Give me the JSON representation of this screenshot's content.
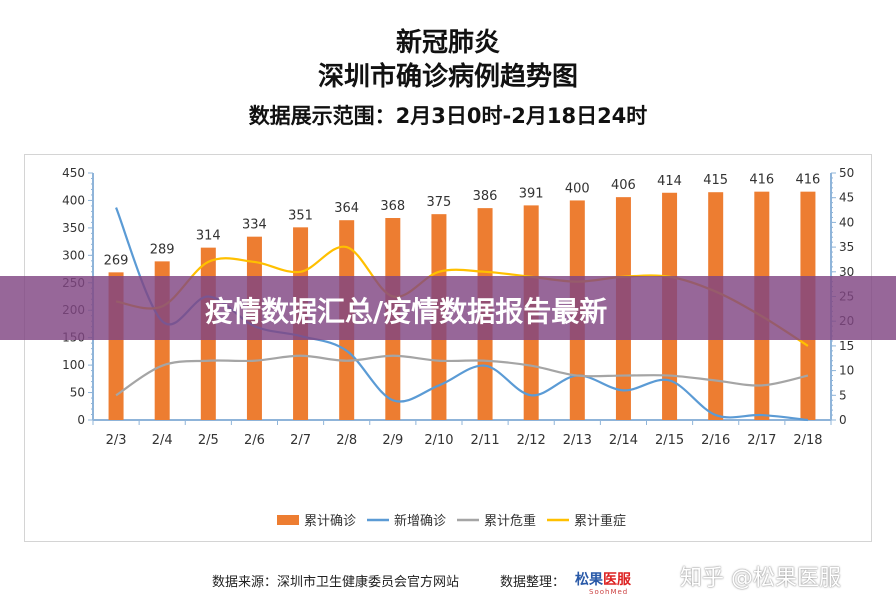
{
  "header": {
    "title_line1": "新冠肺炎",
    "title_line2": "深圳市确诊病例趋势图",
    "date_range": "数据展示范围：2月3日0时-2月18日24时"
  },
  "banner": {
    "text": "疫情数据汇总/疫情数据报告最新"
  },
  "footer": {
    "source": "数据来源：深圳市卫生健康委员会官方网站",
    "organizer": "数据整理：",
    "logo_text_a": "松果",
    "logo_text_b": "医服",
    "logo_sub": "SoohMed",
    "watermark": "知乎 @松果医服"
  },
  "colors": {
    "cumulative": "#ed7d31",
    "new": "#5b9bd5",
    "critical": "#a5a5a5",
    "severe": "#ffc000",
    "axis": "#8fb4d9"
  },
  "chart_data": {
    "type": "bar",
    "categories": [
      "2/3",
      "2/4",
      "2/5",
      "2/6",
      "2/7",
      "2/8",
      "2/9",
      "2/10",
      "2/11",
      "2/12",
      "2/13",
      "2/14",
      "2/15",
      "2/16",
      "2/17",
      "2/18"
    ],
    "ylim_left": [
      0,
      450
    ],
    "ylim_right": [
      0,
      50
    ],
    "yticks_left": [
      0,
      50,
      100,
      150,
      200,
      250,
      300,
      350,
      400,
      450
    ],
    "yticks_right": [
      0,
      5,
      10,
      15,
      20,
      25,
      30,
      35,
      40,
      45,
      50
    ],
    "legend_position": "bottom",
    "series": [
      {
        "name": "累计确诊",
        "type": "bar",
        "axis": "left",
        "values": [
          269,
          289,
          314,
          334,
          351,
          364,
          368,
          375,
          386,
          391,
          400,
          406,
          414,
          415,
          416,
          416
        ],
        "labels": [
          "269",
          "289",
          "314",
          "334",
          "351",
          "364",
          "368",
          "375",
          "386",
          "391",
          "400",
          "406",
          "414",
          "415",
          "416",
          "416"
        ]
      },
      {
        "name": "新增确诊",
        "type": "line",
        "axis": "right",
        "values": [
          43,
          20,
          25,
          19,
          17,
          14,
          4,
          7,
          11,
          5,
          9,
          6,
          8,
          1,
          1,
          0
        ]
      },
      {
        "name": "累计危重",
        "type": "line",
        "axis": "right",
        "values": [
          5,
          11,
          12,
          12,
          13,
          12,
          13,
          12,
          12,
          11,
          9,
          9,
          9,
          8,
          7,
          9
        ]
      },
      {
        "name": "累计重症",
        "type": "line",
        "axis": "right",
        "values": [
          24,
          23,
          32,
          32,
          30,
          35,
          25,
          30,
          30,
          29,
          28,
          29,
          29,
          26,
          21,
          15
        ]
      }
    ]
  }
}
